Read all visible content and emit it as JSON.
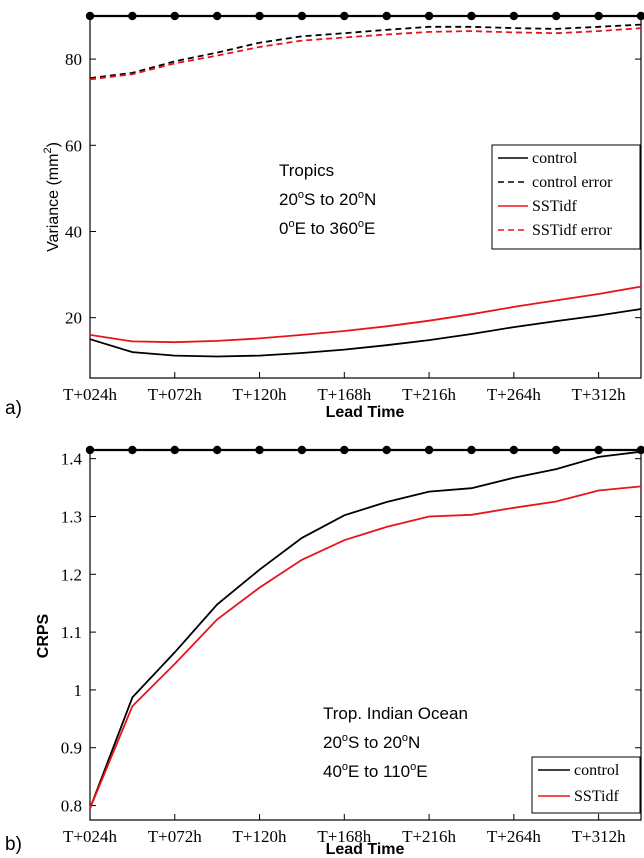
{
  "chart_data": [
    {
      "type": "line",
      "panel_label": "a)",
      "xlabel": "Lead Time",
      "ylabel_main": "Variance (mm",
      "ylabel_sup": "2",
      "ylabel_end": ")",
      "x": [
        24,
        48,
        72,
        96,
        120,
        144,
        168,
        192,
        216,
        240,
        264,
        288,
        312,
        336
      ],
      "xlim": [
        24,
        336
      ],
      "ylim": [
        6,
        90
      ],
      "xticks": [
        24,
        72,
        120,
        168,
        216,
        264,
        312
      ],
      "xticklabels": [
        "T+024h",
        "T+072h",
        "T+120h",
        "T+168h",
        "T+216h",
        "T+264h",
        "T+312h"
      ],
      "yticks": [
        20,
        40,
        60,
        80
      ],
      "yticklabels": [
        "20",
        "40",
        "60",
        "80"
      ],
      "significance_y": 90,
      "significance_x": [
        24,
        48,
        72,
        96,
        120,
        144,
        168,
        192,
        216,
        240,
        264,
        288,
        312,
        336
      ],
      "series": [
        {
          "name": "control",
          "color": "#000000",
          "dash": "",
          "values": [
            15.0,
            12.0,
            11.2,
            11.0,
            11.2,
            11.8,
            12.6,
            13.6,
            14.8,
            16.2,
            17.8,
            19.2,
            20.5,
            22.0
          ]
        },
        {
          "name": "control error",
          "color": "#000000",
          "dash": "6,4",
          "values": [
            75.6,
            76.8,
            79.5,
            81.5,
            83.8,
            85.3,
            86.0,
            86.8,
            87.5,
            87.5,
            87.2,
            87.0,
            87.5,
            88.0
          ]
        },
        {
          "name": "SSTidf",
          "color": "#e8141c",
          "dash": "",
          "values": [
            16.0,
            14.5,
            14.3,
            14.6,
            15.2,
            16.0,
            16.9,
            18.0,
            19.3,
            20.8,
            22.5,
            24.0,
            25.5,
            27.2
          ]
        },
        {
          "name": "SSTidf error",
          "color": "#e8141c",
          "dash": "6,4",
          "values": [
            75.3,
            76.5,
            79.0,
            80.8,
            82.8,
            84.3,
            85.0,
            85.7,
            86.3,
            86.5,
            86.2,
            86.0,
            86.5,
            87.2
          ]
        }
      ],
      "annotation": {
        "line1": "Tropics",
        "line2_a": "20",
        "line2_b": "o",
        "line2_c": "S to 20",
        "line2_d": "o",
        "line2_e": "N",
        "line3_a": "0",
        "line3_b": "o",
        "line3_c": "E to 360",
        "line3_d": "o",
        "line3_e": "E"
      },
      "legend_position": "right"
    },
    {
      "type": "line",
      "panel_label": "b)",
      "xlabel": "Lead Time",
      "ylabel": "CRPS",
      "x": [
        24,
        48,
        72,
        96,
        120,
        144,
        168,
        192,
        216,
        240,
        264,
        288,
        312,
        336
      ],
      "xlim": [
        24,
        336
      ],
      "ylim": [
        0.775,
        1.415
      ],
      "xticks": [
        24,
        72,
        120,
        168,
        216,
        264,
        312
      ],
      "xticklabels": [
        "T+024h",
        "T+072h",
        "T+120h",
        "T+168h",
        "T+216h",
        "T+264h",
        "T+312h"
      ],
      "yticks": [
        0.8,
        0.9,
        1.0,
        1.1,
        1.2,
        1.3,
        1.4
      ],
      "yticklabels": [
        "0.8",
        "0.9",
        "1",
        "1.1",
        "1.2",
        "1.3",
        "1.4"
      ],
      "significance_y": 1.415,
      "significance_x": [
        24,
        48,
        72,
        96,
        120,
        144,
        168,
        192,
        216,
        240,
        264,
        288,
        312,
        336
      ],
      "series": [
        {
          "name": "control",
          "color": "#000000",
          "dash": "",
          "values": [
            0.795,
            0.987,
            1.065,
            1.148,
            1.208,
            1.263,
            1.302,
            1.325,
            1.343,
            1.349,
            1.367,
            1.382,
            1.403,
            1.412
          ]
        },
        {
          "name": "SSTidf",
          "color": "#e8141c",
          "dash": "",
          "values": [
            0.795,
            0.972,
            1.045,
            1.122,
            1.177,
            1.225,
            1.259,
            1.282,
            1.3,
            1.303,
            1.315,
            1.326,
            1.345,
            1.352
          ]
        }
      ],
      "annotation": {
        "line1": "Trop. Indian Ocean",
        "line2_a": "20",
        "line2_b": "o",
        "line2_c": "S to 20",
        "line2_d": "o",
        "line2_e": "N",
        "line3_a": "40",
        "line3_b": "o",
        "line3_c": "E to 110",
        "line3_d": "o",
        "line3_e": "E"
      },
      "legend_position": "bottom-right"
    }
  ]
}
